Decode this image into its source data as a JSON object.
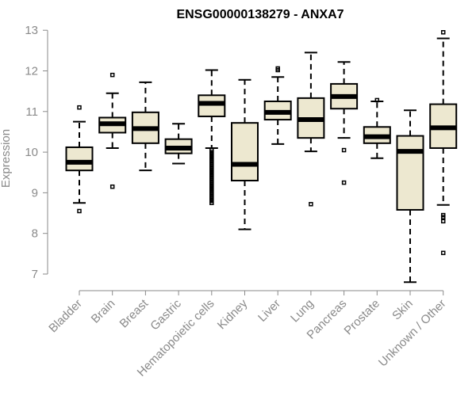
{
  "chart_data": {
    "type": "boxplot",
    "title": "ENSG00000138279 - ANXA7",
    "xlabel": "",
    "ylabel": "Expression",
    "ylim": [
      6.9,
      13.0
    ],
    "yticks": [
      7,
      8,
      9,
      10,
      11,
      12,
      13
    ],
    "grid": false,
    "legend": "none",
    "box_fill": "#ede8d0",
    "line_color": "#000000",
    "axis_color": "#8a8a8a",
    "categories": [
      "Bladder",
      "Brain",
      "Breast",
      "Gastric",
      "Hematopoietic cells",
      "Kidney",
      "Liver",
      "Lung",
      "Pancreas",
      "Prostate",
      "Skin",
      "Unknown / Other"
    ],
    "boxes": [
      {
        "category": "Bladder",
        "whisker_low": 8.75,
        "q1": 9.55,
        "median": 9.75,
        "q3": 10.12,
        "whisker_high": 10.75,
        "outliers": [
          8.55,
          11.1
        ]
      },
      {
        "category": "Brain",
        "whisker_low": 10.1,
        "q1": 10.48,
        "median": 10.7,
        "q3": 10.85,
        "whisker_high": 11.45,
        "outliers": [
          9.15,
          11.9
        ]
      },
      {
        "category": "Breast",
        "whisker_low": 9.55,
        "q1": 10.22,
        "median": 10.58,
        "q3": 10.98,
        "whisker_high": 11.72,
        "outliers": []
      },
      {
        "category": "Gastric",
        "whisker_low": 9.72,
        "q1": 9.97,
        "median": 10.1,
        "q3": 10.32,
        "whisker_high": 10.7,
        "outliers": []
      },
      {
        "category": "Hematopoietic cells",
        "whisker_low": 10.1,
        "q1": 10.88,
        "median": 11.2,
        "q3": 11.4,
        "whisker_high": 12.02,
        "outliers": [
          8.75,
          8.8,
          8.85,
          8.9,
          8.95,
          9.0,
          9.05,
          9.1,
          9.15,
          9.2,
          9.25,
          9.3,
          9.35,
          9.4,
          9.45,
          9.5,
          9.55,
          9.6,
          9.65,
          9.7,
          9.75,
          9.8,
          9.85,
          9.9,
          9.95,
          10.0,
          10.05
        ]
      },
      {
        "category": "Kidney",
        "whisker_low": 8.1,
        "q1": 9.3,
        "median": 9.7,
        "q3": 10.72,
        "whisker_high": 11.78,
        "outliers": []
      },
      {
        "category": "Liver",
        "whisker_low": 10.2,
        "q1": 10.8,
        "median": 10.98,
        "q3": 11.25,
        "whisker_high": 11.85,
        "outliers": [
          12.02,
          12.06
        ]
      },
      {
        "category": "Lung",
        "whisker_low": 10.02,
        "q1": 10.35,
        "median": 10.8,
        "q3": 11.33,
        "whisker_high": 12.45,
        "outliers": [
          8.72
        ]
      },
      {
        "category": "Pancreas",
        "whisker_low": 10.35,
        "q1": 11.07,
        "median": 11.37,
        "q3": 11.68,
        "whisker_high": 12.22,
        "outliers": [
          9.25,
          10.05
        ]
      },
      {
        "category": "Prostate",
        "whisker_low": 9.85,
        "q1": 10.22,
        "median": 10.38,
        "q3": 10.62,
        "whisker_high": 11.25,
        "outliers": [
          11.28
        ]
      },
      {
        "category": "Skin",
        "whisker_low": 6.8,
        "q1": 8.58,
        "median": 10.02,
        "q3": 10.4,
        "whisker_high": 11.03,
        "outliers": []
      },
      {
        "category": "Unknown / Other",
        "whisker_low": 8.7,
        "q1": 10.1,
        "median": 10.6,
        "q3": 11.18,
        "whisker_high": 12.8,
        "outliers": [
          7.52,
          8.3,
          8.4,
          8.45,
          12.95
        ]
      }
    ]
  }
}
